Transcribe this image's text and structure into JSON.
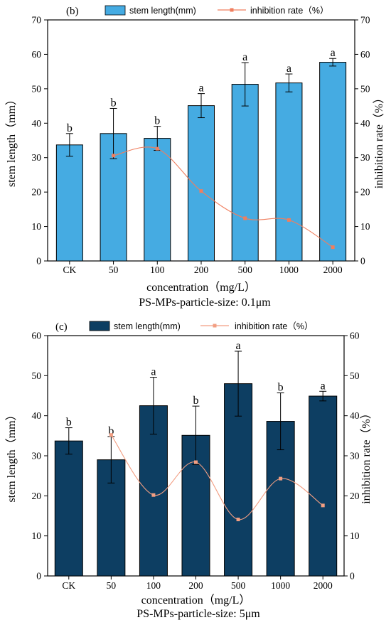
{
  "chart_data": [
    {
      "type": "bar",
      "panel_label": "(b)",
      "categories": [
        "CK",
        "50",
        "100",
        "200",
        "500",
        "1000",
        "2000"
      ],
      "series": [
        {
          "name": "stem length(mm)",
          "kind": "bar",
          "color": "#45ABE2",
          "axis": "left",
          "values": [
            33.7,
            37.0,
            35.6,
            45.1,
            51.3,
            51.7,
            57.7
          ],
          "errors": [
            3.3,
            7.3,
            3.5,
            3.5,
            6.3,
            2.6,
            1.1
          ],
          "sig_labels": [
            "b",
            "b",
            "b",
            "a",
            "a",
            "a",
            "a"
          ]
        },
        {
          "name": "inhibition rate（%）",
          "kind": "line",
          "color": "#F07E5E",
          "axis": "right",
          "values": [
            null,
            30.6,
            32.6,
            20.3,
            12.4,
            11.9,
            4.0
          ]
        }
      ],
      "xlabel": "concentration（mg/L）",
      "ylabel": "stem length（mm）",
      "y2label": "inhibition rate（%）",
      "subtitle": "PS-MPs-particle-size: 0.1μm",
      "ylim": [
        0,
        70
      ],
      "y2lim": [
        0,
        70
      ],
      "yticks": [
        0,
        10,
        20,
        30,
        40,
        50,
        60,
        70
      ],
      "legend_position": "top"
    },
    {
      "type": "bar",
      "panel_label": "(c)",
      "categories": [
        "CK",
        "50",
        "100",
        "200",
        "500",
        "1000",
        "2000"
      ],
      "series": [
        {
          "name": "stem length(mm)",
          "kind": "bar",
          "color": "#0D3E62",
          "axis": "left",
          "values": [
            33.7,
            29.0,
            42.5,
            35.1,
            48.0,
            38.6,
            44.9
          ],
          "errors": [
            3.3,
            5.8,
            7.1,
            7.3,
            8.1,
            7.1,
            1.2
          ],
          "sig_labels": [
            "b",
            "b",
            "a",
            "b",
            "a",
            "b",
            "a"
          ]
        },
        {
          "name": "inhibition rate（%）",
          "kind": "line",
          "color": "#F29E82",
          "axis": "right",
          "values": [
            null,
            35.2,
            20.2,
            28.4,
            14.1,
            24.3,
            17.6
          ]
        }
      ],
      "xlabel": "concentration（mg/L）",
      "ylabel": "stem length（mm）",
      "y2label": "inhibition rate（%）",
      "subtitle": "PS-MPs-particle-size: 5μm",
      "ylim": [
        0,
        60
      ],
      "y2lim": [
        0,
        60
      ],
      "yticks": [
        0,
        10,
        20,
        30,
        40,
        50,
        60
      ],
      "legend_position": "top"
    }
  ]
}
